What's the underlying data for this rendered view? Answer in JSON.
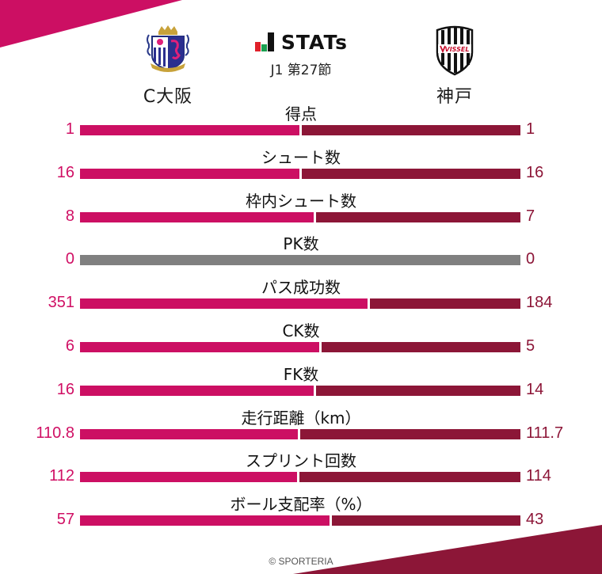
{
  "header": {
    "brand": "STATs",
    "brand_icon": "bar-chart-logo-icon",
    "round": "J1 第27節"
  },
  "teams": {
    "home": {
      "name": "C大阪",
      "crest_icon": "cerezo-osaka-crest-icon",
      "color": "#cc0f63"
    },
    "away": {
      "name": "神戸",
      "crest_icon": "vissel-kobe-crest-icon",
      "crest_text": "VISSEL",
      "color": "#8c1637"
    }
  },
  "colors": {
    "home_bar": "#cc0f63",
    "away_bar": "#8c1637",
    "zero_bar": "#808080",
    "home_text": "#d00f64",
    "away_text": "#8c1537"
  },
  "stats": [
    {
      "label": "得点",
      "home": "1",
      "away": "1"
    },
    {
      "label": "シュート数",
      "home": "16",
      "away": "16"
    },
    {
      "label": "枠内シュート数",
      "home": "8",
      "away": "7"
    },
    {
      "label": "PK数",
      "home": "0",
      "away": "0"
    },
    {
      "label": "パス成功数",
      "home": "351",
      "away": "184"
    },
    {
      "label": "CK数",
      "home": "6",
      "away": "5"
    },
    {
      "label": "FK数",
      "home": "16",
      "away": "14"
    },
    {
      "label": "走行距離（km）",
      "home": "110.8",
      "away": "111.7"
    },
    {
      "label": "スプリント回数",
      "home": "112",
      "away": "114"
    },
    {
      "label": "ボール支配率（%）",
      "home": "57",
      "away": "43"
    }
  ],
  "footer": {
    "copyright": "© SPORTERIA"
  },
  "chart_data": {
    "type": "bar",
    "orientation": "horizontal-diverging",
    "title": "STATs J1 第27節",
    "categories": [
      "得点",
      "シュート数",
      "枠内シュート数",
      "PK数",
      "パス成功数",
      "CK数",
      "FK数",
      "走行距離（km）",
      "スプリント回数",
      "ボール支配率（%）"
    ],
    "series": [
      {
        "name": "C大阪",
        "values": [
          1,
          16,
          8,
          0,
          351,
          6,
          16,
          110.8,
          112,
          57
        ]
      },
      {
        "name": "神戸",
        "values": [
          1,
          16,
          7,
          0,
          184,
          5,
          14,
          111.7,
          114,
          43
        ]
      }
    ],
    "xlabel": "",
    "ylabel": "",
    "grid": false,
    "legend": "team names above bars"
  }
}
